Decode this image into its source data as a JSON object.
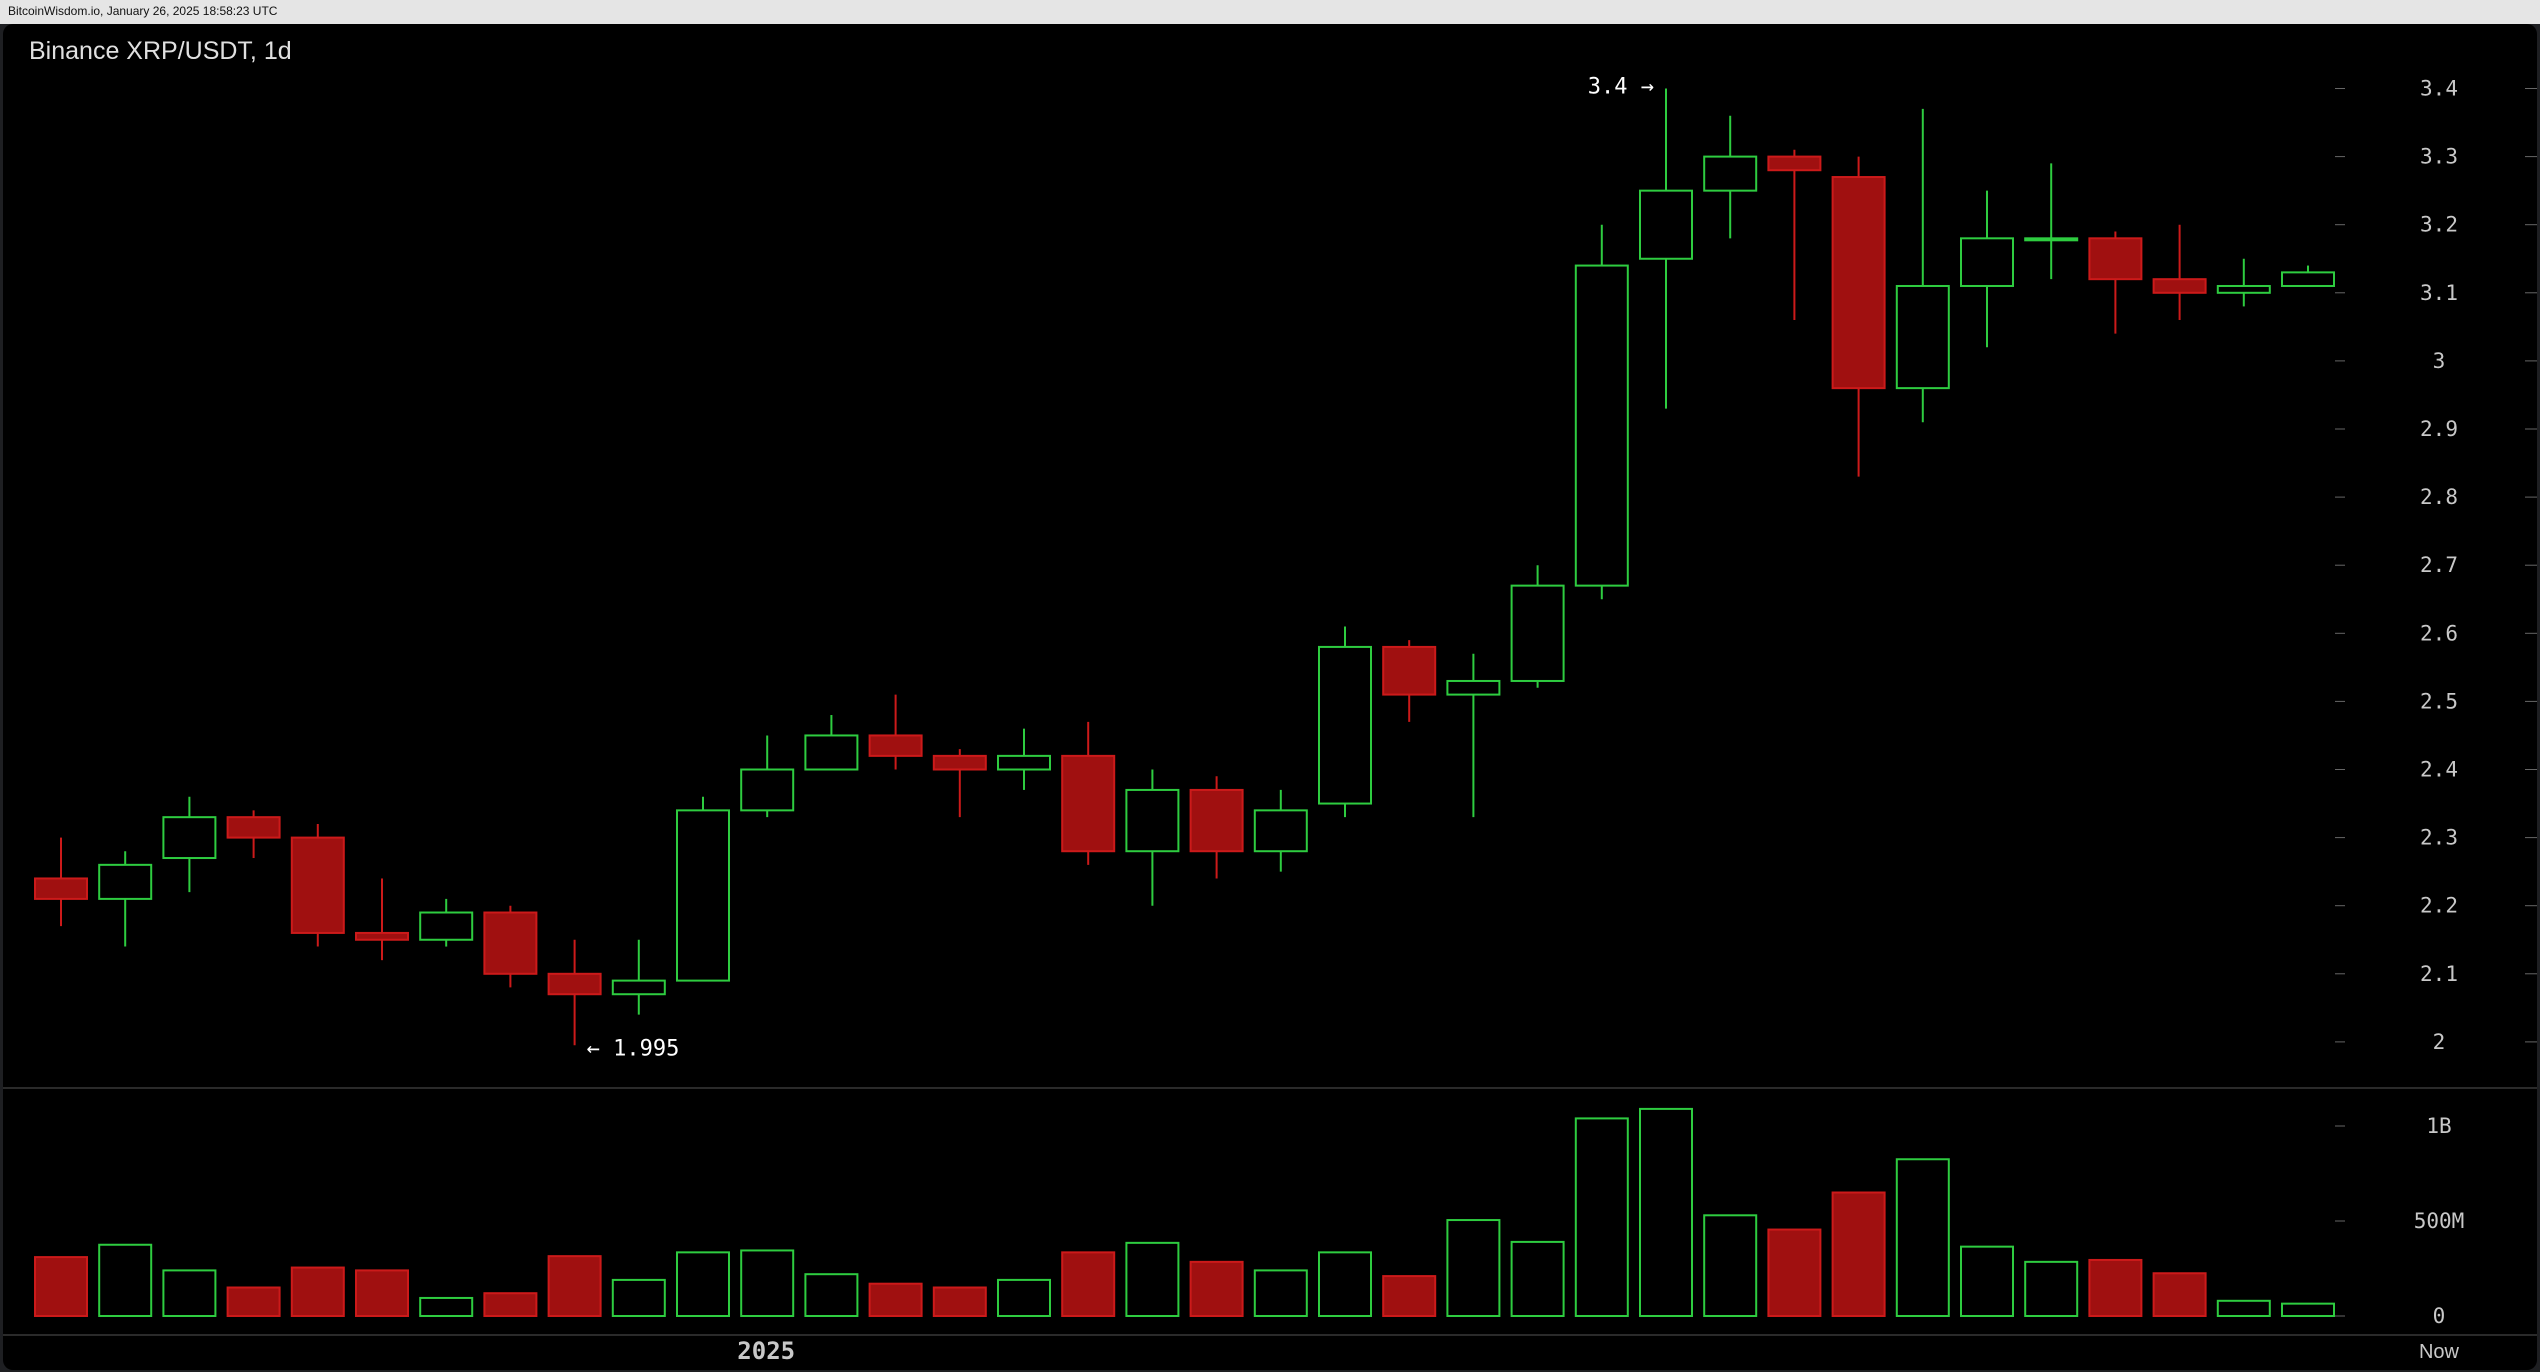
{
  "header": {
    "text": "BitcoinWisdom.io, January 26, 2025 18:58:23 UTC"
  },
  "colors": {
    "up": "#2ecc40",
    "down_fill": "#a01010",
    "down_stroke": "#cc1a1a",
    "background": "#000000",
    "axis_text": "#c8c8c8"
  },
  "chart_data": {
    "type": "candlestick",
    "title": "Binance XRP/USDT, 1d",
    "price_axis": {
      "ticks": [
        "3.4",
        "3.3",
        "3.2",
        "3.1",
        "3",
        "2.9",
        "2.8",
        "2.7",
        "2.6",
        "2.5",
        "2.4",
        "2.3",
        "2.2",
        "2.1",
        "2"
      ],
      "range": [
        1.95,
        3.45
      ]
    },
    "volume_axis": {
      "ticks": [
        "1B",
        "500M",
        "0"
      ],
      "range": [
        0,
        1100000000
      ]
    },
    "x_labels": [
      {
        "label": "2025",
        "candle_index": 11
      },
      {
        "label": "Now",
        "candle_index": 37
      }
    ],
    "annotations": [
      {
        "text": "3.4 →",
        "candle_index": 25,
        "price": 3.4,
        "anchor": "left"
      },
      {
        "text": "← 1.995",
        "candle_index": 8,
        "price": 1.995,
        "anchor": "right"
      }
    ],
    "candles": [
      {
        "open": 2.24,
        "high": 2.3,
        "low": 2.17,
        "close": 2.21,
        "volume": 310000000
      },
      {
        "open": 2.21,
        "high": 2.28,
        "low": 2.14,
        "close": 2.26,
        "volume": 375000000
      },
      {
        "open": 2.27,
        "high": 2.36,
        "low": 2.22,
        "close": 2.33,
        "volume": 240000000
      },
      {
        "open": 2.33,
        "high": 2.34,
        "low": 2.27,
        "close": 2.3,
        "volume": 150000000
      },
      {
        "open": 2.3,
        "high": 2.32,
        "low": 2.14,
        "close": 2.16,
        "volume": 255000000
      },
      {
        "open": 2.16,
        "high": 2.24,
        "low": 2.12,
        "close": 2.15,
        "volume": 240000000
      },
      {
        "open": 2.15,
        "high": 2.21,
        "low": 2.14,
        "close": 2.19,
        "volume": 95000000
      },
      {
        "open": 2.19,
        "high": 2.2,
        "low": 2.08,
        "close": 2.1,
        "volume": 120000000
      },
      {
        "open": 2.1,
        "high": 2.15,
        "low": 1.995,
        "close": 2.07,
        "volume": 315000000
      },
      {
        "open": 2.07,
        "high": 2.15,
        "low": 2.04,
        "close": 2.09,
        "volume": 190000000
      },
      {
        "open": 2.09,
        "high": 2.36,
        "low": 2.09,
        "close": 2.34,
        "volume": 335000000
      },
      {
        "open": 2.34,
        "high": 2.45,
        "low": 2.33,
        "close": 2.4,
        "volume": 345000000
      },
      {
        "open": 2.4,
        "high": 2.48,
        "low": 2.4,
        "close": 2.45,
        "volume": 220000000
      },
      {
        "open": 2.45,
        "high": 2.51,
        "low": 2.4,
        "close": 2.42,
        "volume": 170000000
      },
      {
        "open": 2.42,
        "high": 2.43,
        "low": 2.33,
        "close": 2.4,
        "volume": 150000000
      },
      {
        "open": 2.4,
        "high": 2.46,
        "low": 2.37,
        "close": 2.42,
        "volume": 190000000
      },
      {
        "open": 2.42,
        "high": 2.47,
        "low": 2.26,
        "close": 2.28,
        "volume": 335000000
      },
      {
        "open": 2.28,
        "high": 2.4,
        "low": 2.2,
        "close": 2.37,
        "volume": 385000000
      },
      {
        "open": 2.37,
        "high": 2.39,
        "low": 2.24,
        "close": 2.28,
        "volume": 285000000
      },
      {
        "open": 2.28,
        "high": 2.37,
        "low": 2.25,
        "close": 2.34,
        "volume": 240000000
      },
      {
        "open": 2.35,
        "high": 2.61,
        "low": 2.33,
        "close": 2.58,
        "volume": 335000000
      },
      {
        "open": 2.58,
        "high": 2.59,
        "low": 2.47,
        "close": 2.51,
        "volume": 210000000
      },
      {
        "open": 2.51,
        "high": 2.57,
        "low": 2.33,
        "close": 2.53,
        "volume": 505000000
      },
      {
        "open": 2.53,
        "high": 2.7,
        "low": 2.52,
        "close": 2.67,
        "volume": 390000000
      },
      {
        "open": 2.67,
        "high": 3.2,
        "low": 2.65,
        "close": 3.14,
        "volume": 1040000000
      },
      {
        "open": 3.15,
        "high": 3.4,
        "low": 2.93,
        "close": 3.25,
        "volume": 1090000000
      },
      {
        "open": 3.25,
        "high": 3.36,
        "low": 3.18,
        "close": 3.3,
        "volume": 530000000
      },
      {
        "open": 3.3,
        "high": 3.31,
        "low": 3.06,
        "close": 3.28,
        "volume": 455000000
      },
      {
        "open": 3.27,
        "high": 3.3,
        "low": 2.83,
        "close": 2.96,
        "volume": 650000000
      },
      {
        "open": 2.96,
        "high": 3.37,
        "low": 2.91,
        "close": 3.11,
        "volume": 825000000
      },
      {
        "open": 3.11,
        "high": 3.25,
        "low": 3.02,
        "close": 3.18,
        "volume": 365000000
      },
      {
        "open": 3.18,
        "high": 3.29,
        "low": 3.12,
        "close": 3.18,
        "volume": 285000000
      },
      {
        "open": 3.18,
        "high": 3.19,
        "low": 3.04,
        "close": 3.12,
        "volume": 295000000
      },
      {
        "open": 3.12,
        "high": 3.2,
        "low": 3.06,
        "close": 3.1,
        "volume": 225000000
      },
      {
        "open": 3.1,
        "high": 3.15,
        "low": 3.08,
        "close": 3.11,
        "volume": 80000000
      },
      {
        "open": 3.11,
        "high": 3.14,
        "low": 3.11,
        "close": 3.13,
        "volume": 65000000
      }
    ]
  }
}
